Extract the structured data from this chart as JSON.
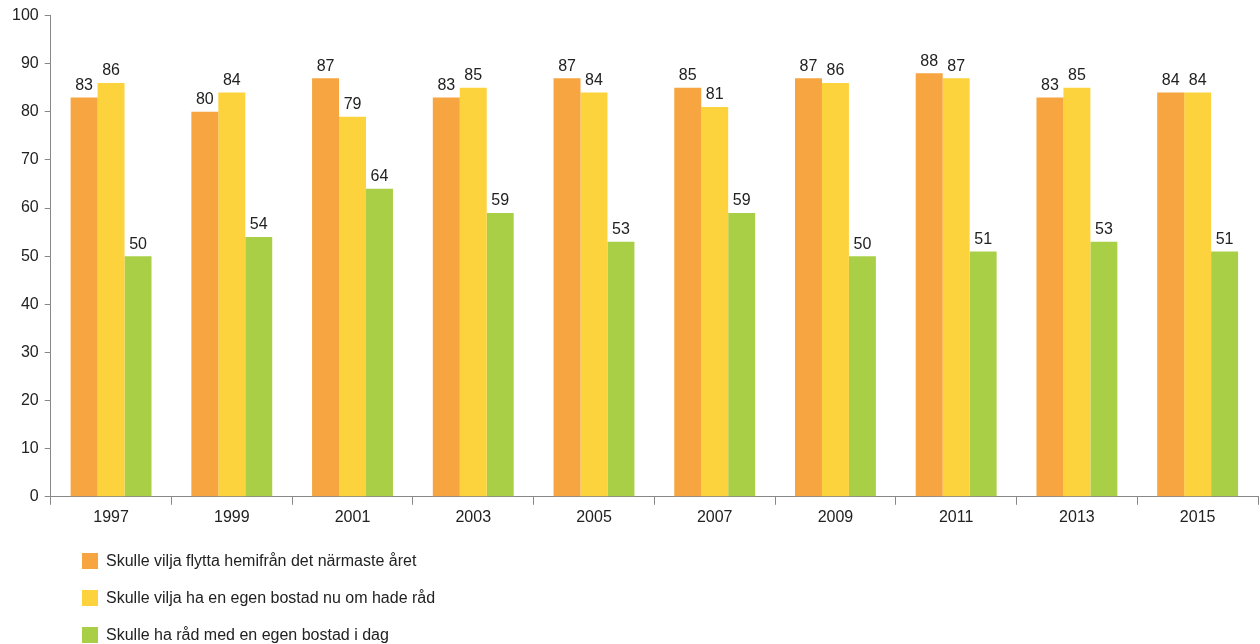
{
  "chart_data": {
    "type": "bar",
    "categories": [
      "1997",
      "1999",
      "2001",
      "2003",
      "2005",
      "2007",
      "2009",
      "2011",
      "2013",
      "2015"
    ],
    "series": [
      {
        "name": "Skulle vilja flytta hemifrån det närmaste året",
        "color": "#f7a541",
        "values": [
          83,
          80,
          87,
          83,
          87,
          85,
          87,
          88,
          83,
          84
        ]
      },
      {
        "name": "Skulle vilja ha en egen bostad nu om hade råd",
        "color": "#fdd33d",
        "values": [
          86,
          84,
          79,
          85,
          84,
          81,
          86,
          87,
          85,
          84
        ]
      },
      {
        "name": "Skulle ha råd med en egen bostad i dag",
        "color": "#a9cf46",
        "values": [
          50,
          54,
          64,
          59,
          53,
          59,
          50,
          51,
          53,
          51
        ]
      }
    ],
    "ylim": [
      0,
      100
    ],
    "yticks": [
      0,
      10,
      20,
      30,
      40,
      50,
      60,
      70,
      80,
      90,
      100
    ],
    "grid": false,
    "legend": "bottom left",
    "data_labels": true
  }
}
